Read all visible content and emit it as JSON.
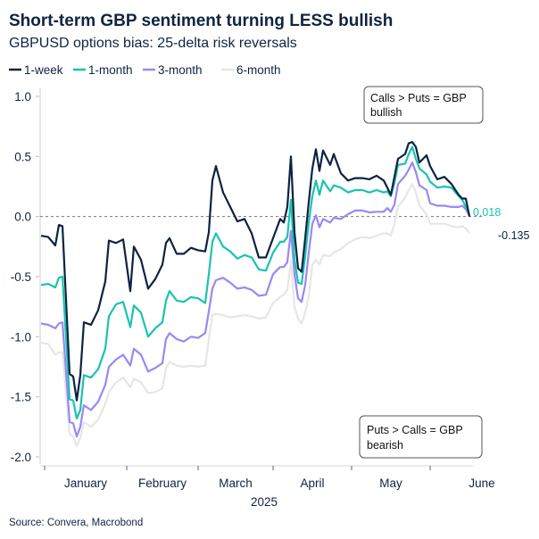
{
  "chart_data": {
    "type": "line",
    "title": "Short-term GBP sentiment turning LESS bullish",
    "subtitle": "GBPUSD options bias: 25-delta risk reversals",
    "source": "Source: Convera, Macrobond",
    "xlabel": "2025",
    "ylabel": "",
    "ylim": [
      -2.0,
      1.0
    ],
    "y_ticks": [
      "1.0",
      "0.5",
      "0.0",
      "-0.5",
      "-1.0",
      "-1.5",
      "-2.0"
    ],
    "y_tick_values": [
      1.0,
      0.5,
      0.0,
      -0.5,
      -1.0,
      -1.5,
      -2.0
    ],
    "x_ticks": [
      "January",
      "February",
      "March",
      "April",
      "May",
      "June"
    ],
    "x_axis_note": "business-day spacing",
    "zero_line": "dashed",
    "grid": false,
    "legend_position": "top-left",
    "x": [
      "2024-12-31",
      "2025-01-02",
      "2025-01-06",
      "2025-01-07",
      "2025-01-08",
      "2025-01-10",
      "2025-01-13",
      "2025-01-14",
      "2025-01-15",
      "2025-01-16",
      "2025-01-20",
      "2025-01-22",
      "2025-01-24",
      "2025-01-27",
      "2025-01-29",
      "2025-01-31",
      "2025-02-04",
      "2025-02-05",
      "2025-02-07",
      "2025-02-11",
      "2025-02-13",
      "2025-02-17",
      "2025-02-18",
      "2025-02-19",
      "2025-02-21",
      "2025-02-25",
      "2025-02-27",
      "2025-03-03",
      "2025-03-05",
      "2025-03-06",
      "2025-03-07",
      "2025-03-10",
      "2025-03-12",
      "2025-03-14",
      "2025-03-18",
      "2025-03-20",
      "2025-03-24",
      "2025-03-26",
      "2025-03-28",
      "2025-04-01",
      "2025-04-03",
      "2025-04-04",
      "2025-04-07",
      "2025-04-08",
      "2025-04-09",
      "2025-04-10",
      "2025-04-11",
      "2025-04-14",
      "2025-04-15",
      "2025-04-16",
      "2025-04-17",
      "2025-04-18",
      "2025-04-21",
      "2025-04-23",
      "2025-04-24",
      "2025-04-28",
      "2025-04-30",
      "2025-05-02",
      "2025-05-06",
      "2025-05-08",
      "2025-05-12",
      "2025-05-14",
      "2025-05-15",
      "2025-05-16",
      "2025-05-19",
      "2025-05-20",
      "2025-05-22",
      "2025-05-23",
      "2025-05-26",
      "2025-05-27",
      "2025-05-28",
      "2025-05-30",
      "2025-06-02",
      "2025-06-04",
      "2025-06-06",
      "2025-06-10",
      "2025-06-12",
      "2025-06-13",
      "2025-06-16",
      "2025-06-17"
    ],
    "series": [
      {
        "name": "6-month",
        "color": "#e6e6e6",
        "values": [
          -1.05,
          -1.06,
          -1.15,
          -1.13,
          -1.13,
          -1.81,
          -1.83,
          -1.91,
          -1.84,
          -1.71,
          -1.75,
          -1.69,
          -1.56,
          -1.46,
          -1.38,
          -1.34,
          -1.42,
          -1.35,
          -1.38,
          -1.47,
          -1.46,
          -1.43,
          -1.26,
          -1.21,
          -1.24,
          -1.25,
          -1.24,
          -1.25,
          -1.24,
          -1.02,
          -0.82,
          -0.81,
          -0.82,
          -0.84,
          -0.83,
          -0.82,
          -0.83,
          -0.85,
          -0.84,
          -0.72,
          -0.67,
          -0.65,
          -0.61,
          -0.37,
          -0.75,
          -0.85,
          -0.89,
          -0.8,
          -0.66,
          -0.4,
          -0.36,
          -0.4,
          -0.32,
          -0.33,
          -0.3,
          -0.27,
          -0.22,
          -0.19,
          -0.17,
          -0.18,
          -0.16,
          -0.14,
          -0.14,
          -0.16,
          -0.06,
          0.08,
          0.16,
          0.22,
          0.27,
          0.2,
          0.09,
          0.02,
          -0.06,
          -0.06,
          -0.06,
          -0.08,
          -0.09,
          -0.08,
          -0.1,
          -0.135
        ]
      },
      {
        "name": "3-month",
        "color": "#9b87f5",
        "values": [
          -0.89,
          -0.9,
          -0.93,
          -0.89,
          -0.88,
          -1.71,
          -1.72,
          -1.83,
          -1.75,
          -1.57,
          -1.61,
          -1.54,
          -1.4,
          -1.25,
          -1.19,
          -1.15,
          -1.24,
          -1.1,
          -1.15,
          -1.29,
          -1.26,
          -1.22,
          -1.02,
          -0.97,
          -1.02,
          -1.04,
          -1.0,
          -1.01,
          -0.97,
          -0.79,
          -0.6,
          -0.53,
          -0.51,
          -0.55,
          -0.6,
          -0.59,
          -0.61,
          -0.66,
          -0.65,
          -0.48,
          -0.42,
          -0.42,
          -0.38,
          -0.12,
          -0.48,
          -0.68,
          -0.71,
          -0.57,
          -0.3,
          -0.06,
          0.01,
          -0.09,
          -0.02,
          -0.05,
          -0.01,
          -0.02,
          0.02,
          0.05,
          0.05,
          0.035,
          0.04,
          0.04,
          0.07,
          0.04,
          0.1,
          0.27,
          0.34,
          0.39,
          0.45,
          0.37,
          0.26,
          0.22,
          0.11,
          0.09,
          0.09,
          0.08,
          0.08,
          0.09,
          0.06,
          0.01
        ]
      },
      {
        "name": "1-month",
        "color": "#19c3b1",
        "values": [
          -0.57,
          -0.56,
          -0.59,
          -0.51,
          -0.5,
          -1.52,
          -1.53,
          -1.68,
          -1.61,
          -1.32,
          -1.34,
          -1.27,
          -1.1,
          -0.83,
          -0.73,
          -0.71,
          -0.92,
          -0.74,
          -0.8,
          -1.0,
          -0.93,
          -0.88,
          -0.7,
          -0.62,
          -0.7,
          -0.71,
          -0.67,
          -0.68,
          -0.72,
          -0.48,
          -0.21,
          -0.14,
          -0.25,
          -0.29,
          -0.35,
          -0.32,
          -0.34,
          -0.44,
          -0.45,
          -0.3,
          -0.21,
          -0.21,
          -0.17,
          0.14,
          -0.36,
          -0.55,
          -0.56,
          -0.33,
          -0.05,
          0.17,
          0.3,
          0.18,
          0.3,
          0.21,
          0.26,
          0.24,
          0.2,
          0.22,
          0.22,
          0.2,
          0.22,
          0.2,
          0.21,
          0.17,
          0.28,
          0.43,
          0.44,
          0.52,
          0.58,
          0.48,
          0.4,
          0.35,
          0.29,
          0.24,
          0.25,
          0.24,
          0.17,
          0.14,
          0.08,
          0.018
        ]
      },
      {
        "name": "1-week",
        "color": "#0b2341",
        "values": [
          -0.16,
          -0.17,
          -0.24,
          -0.07,
          -0.08,
          -1.31,
          -1.33,
          -1.53,
          -1.32,
          -0.88,
          -0.9,
          -0.78,
          -0.54,
          -0.2,
          -0.22,
          -0.19,
          -0.62,
          -0.25,
          -0.36,
          -0.6,
          -0.52,
          -0.4,
          -0.22,
          -0.18,
          -0.31,
          -0.31,
          -0.26,
          -0.28,
          -0.29,
          -0.13,
          0.3,
          0.42,
          0.2,
          0.08,
          -0.04,
          -0.02,
          -0.14,
          -0.34,
          -0.34,
          -0.18,
          -0.02,
          -0.05,
          0.08,
          0.5,
          -0.13,
          -0.43,
          -0.46,
          -0.18,
          0.12,
          0.4,
          0.56,
          0.38,
          0.55,
          0.43,
          0.52,
          0.36,
          0.3,
          0.32,
          0.32,
          0.31,
          0.34,
          0.3,
          0.24,
          0.18,
          0.33,
          0.48,
          0.52,
          0.61,
          0.62,
          0.58,
          0.45,
          0.51,
          0.42,
          0.31,
          0.33,
          0.27,
          0.18,
          0.15,
          0.15,
          0.0
        ]
      }
    ],
    "legend": [
      {
        "name": "1-week",
        "color": "#0b2341"
      },
      {
        "name": "1-month",
        "color": "#19c3b1"
      },
      {
        "name": "3-month",
        "color": "#9b87f5"
      },
      {
        "name": "6-month",
        "color": "#e6e6e6"
      }
    ],
    "annotations": {
      "bullish_line1": "Calls > Puts = GBP",
      "bullish_line2": "bullish",
      "bearish_line1": "Puts > Calls = GBP",
      "bearish_line2": "bearish"
    },
    "end_labels": [
      {
        "text": "0.018",
        "color": "#19c3b1"
      },
      {
        "text": "-0.135",
        "color": "#0b2341"
      }
    ]
  }
}
